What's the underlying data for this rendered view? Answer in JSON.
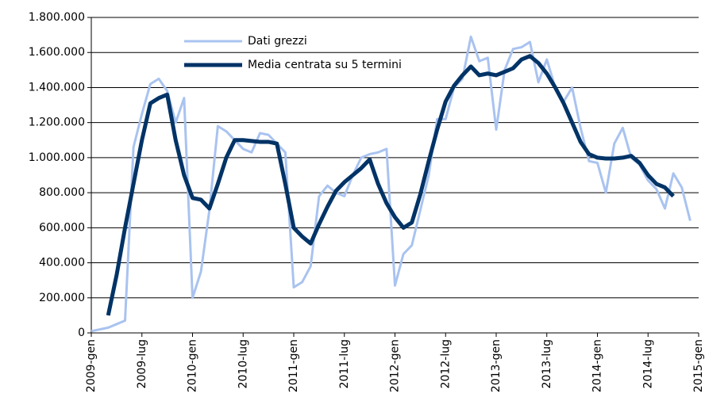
{
  "chart_data": {
    "type": "line",
    "categories": [
      "2009-gen",
      null,
      null,
      null,
      null,
      null,
      "2009-lug",
      null,
      null,
      null,
      null,
      null,
      "2010-gen",
      null,
      null,
      null,
      null,
      null,
      "2010-lug",
      null,
      null,
      null,
      null,
      null,
      "2011-gen",
      null,
      null,
      null,
      null,
      null,
      "2011-lug",
      null,
      null,
      null,
      null,
      null,
      "2012-gen",
      null,
      null,
      null,
      null,
      null,
      "2012-lug",
      null,
      null,
      null,
      null,
      null,
      "2013-gen",
      null,
      null,
      null,
      null,
      null,
      "2013-lug",
      null,
      null,
      null,
      null,
      null,
      "2014-gen",
      null,
      null,
      null,
      null,
      null,
      "2014-lug",
      null,
      null,
      null,
      null,
      null,
      "2015-gen"
    ],
    "series": [
      {
        "name": "Dati grezzi",
        "color": "#a9c3f0",
        "values": [
          10000,
          20000,
          30000,
          50000,
          70000,
          1060000,
          1250000,
          1420000,
          1450000,
          1380000,
          1200000,
          1340000,
          200000,
          350000,
          700000,
          1180000,
          1150000,
          1100000,
          1050000,
          1030000,
          1140000,
          1130000,
          1080000,
          1030000,
          260000,
          290000,
          380000,
          780000,
          840000,
          800000,
          780000,
          900000,
          1000000,
          1020000,
          1030000,
          1050000,
          270000,
          450000,
          500000,
          700000,
          900000,
          1220000,
          1220000,
          1400000,
          1450000,
          1690000,
          1550000,
          1570000,
          1160000,
          1500000,
          1620000,
          1630000,
          1660000,
          1430000,
          1560000,
          1400000,
          1320000,
          1400000,
          1170000,
          980000,
          970000,
          800000,
          1080000,
          1170000,
          1000000,
          960000,
          870000,
          820000,
          710000,
          910000,
          830000,
          640000,
          null
        ]
      },
      {
        "name": "Media centrata su 5 termini",
        "color": "#003366",
        "values": [
          null,
          null,
          100000,
          330000,
          600000,
          850000,
          1100000,
          1310000,
          1340000,
          1360000,
          1100000,
          900000,
          770000,
          760000,
          710000,
          850000,
          1000000,
          1100000,
          1100000,
          1095000,
          1090000,
          1090000,
          1080000,
          850000,
          600000,
          550000,
          510000,
          620000,
          720000,
          810000,
          860000,
          900000,
          940000,
          990000,
          850000,
          740000,
          660000,
          600000,
          630000,
          790000,
          980000,
          1160000,
          1320000,
          1410000,
          1470000,
          1520000,
          1470000,
          1480000,
          1470000,
          1490000,
          1510000,
          1560000,
          1580000,
          1540000,
          1480000,
          1400000,
          1310000,
          1200000,
          1090000,
          1020000,
          1000000,
          995000,
          995000,
          1000000,
          1010000,
          970000,
          900000,
          850000,
          830000,
          780000,
          null,
          null,
          null
        ]
      }
    ],
    "ylim": [
      0,
      1800000
    ],
    "yticks": [
      0,
      {
        "value": 200000,
        "label": "200.000"
      },
      {
        "value": 400000,
        "label": "400.000"
      },
      {
        "value": 600000,
        "label": "600.000"
      },
      {
        "value": 800000,
        "label": "800.000"
      },
      {
        "value": 1000000,
        "label": "1.000.000"
      },
      {
        "value": 1200000,
        "label": "1.200.000"
      },
      {
        "value": 1400000,
        "label": "1.400.000"
      },
      {
        "value": 1600000,
        "label": "1.600.000"
      },
      {
        "value": 1800000,
        "label": "1.800.000"
      }
    ],
    "grid": true
  }
}
